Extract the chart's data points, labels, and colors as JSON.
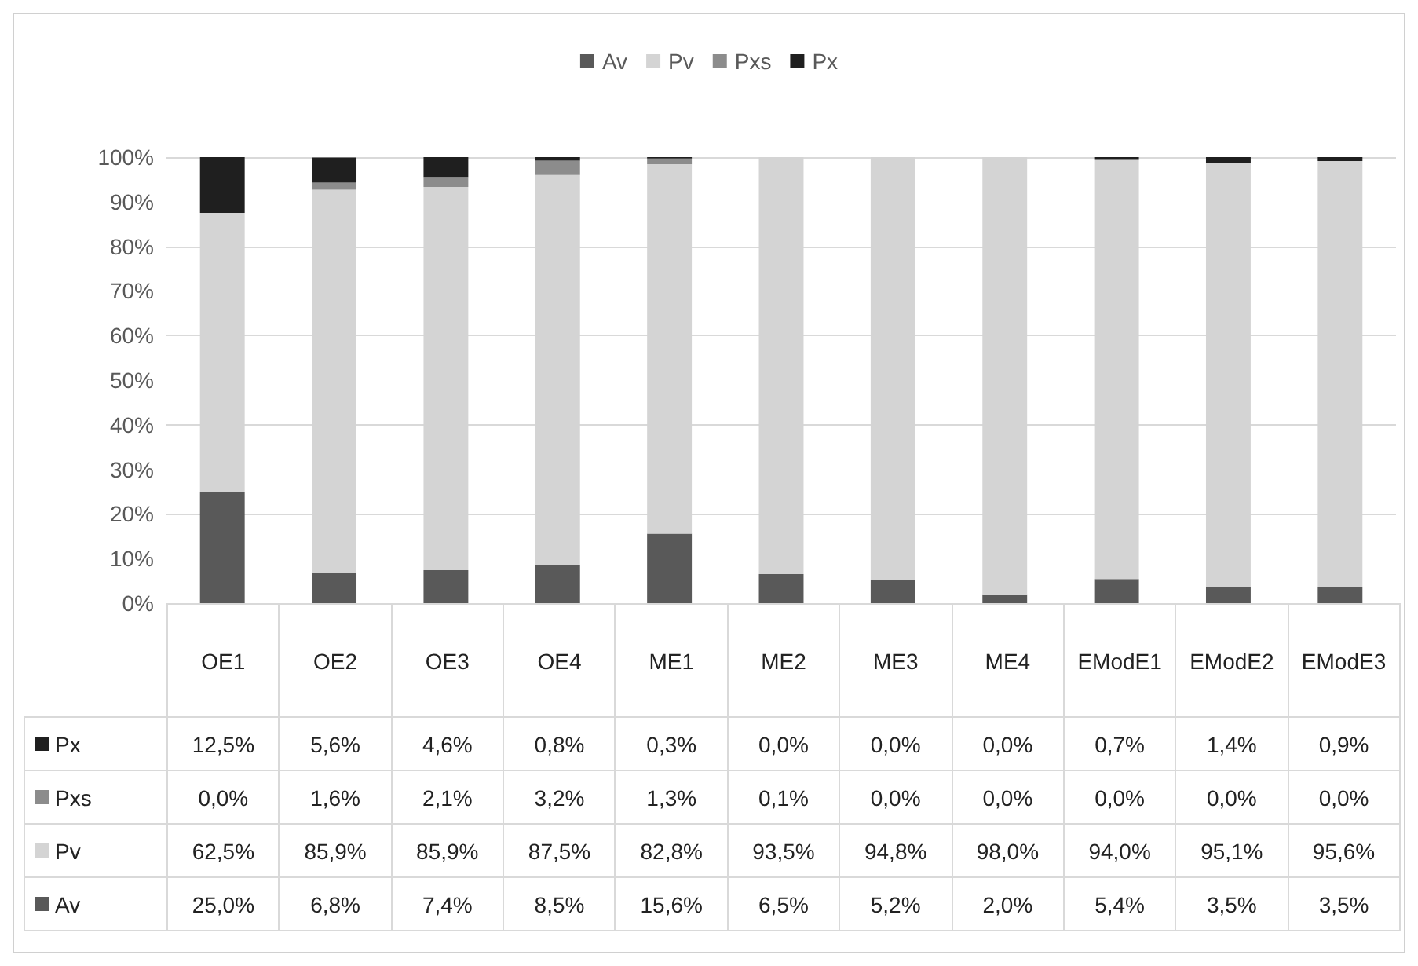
{
  "chart_data": {
    "type": "bar",
    "stacked": true,
    "categories": [
      "OE1",
      "OE2",
      "OE3",
      "OE4",
      "ME1",
      "ME2",
      "ME3",
      "ME4",
      "EModE1",
      "EModE2",
      "EModE3"
    ],
    "series": [
      {
        "name": "Av",
        "color": "#595959",
        "values": [
          25.0,
          6.8,
          7.4,
          8.5,
          15.6,
          6.5,
          5.2,
          2.0,
          5.4,
          3.5,
          3.5
        ],
        "value_labels": [
          "25,0%",
          "6,8%",
          "7,4%",
          "8,5%",
          "15,6%",
          "6,5%",
          "5,2%",
          "2,0%",
          "5,4%",
          "3,5%",
          "3,5%"
        ]
      },
      {
        "name": "Pv",
        "color": "#d4d4d4",
        "values": [
          62.5,
          85.9,
          85.9,
          87.5,
          82.8,
          93.5,
          94.8,
          98.0,
          94.0,
          95.1,
          95.6
        ],
        "value_labels": [
          "62,5%",
          "85,9%",
          "85,9%",
          "87,5%",
          "82,8%",
          "93,5%",
          "94,8%",
          "98,0%",
          "94,0%",
          "95,1%",
          "95,6%"
        ]
      },
      {
        "name": "Pxs",
        "color": "#8c8c8c",
        "values": [
          0.0,
          1.6,
          2.1,
          3.2,
          1.3,
          0.1,
          0.0,
          0.0,
          0.0,
          0.0,
          0.0
        ],
        "value_labels": [
          "0,0%",
          "1,6%",
          "2,1%",
          "3,2%",
          "1,3%",
          "0,1%",
          "0,0%",
          "0,0%",
          "0,0%",
          "0,0%",
          "0,0%"
        ]
      },
      {
        "name": "Px",
        "color": "#1f1f1f",
        "values": [
          12.5,
          5.6,
          4.6,
          0.8,
          0.3,
          0.0,
          0.0,
          0.0,
          0.7,
          1.4,
          0.9
        ],
        "value_labels": [
          "12,5%",
          "5,6%",
          "4,6%",
          "0,8%",
          "0,3%",
          "0,0%",
          "0,0%",
          "0,0%",
          "0,7%",
          "1,4%",
          "0,9%"
        ]
      }
    ],
    "ylim": [
      0,
      100
    ],
    "yticks": [
      {
        "value": 0,
        "label": "0%"
      },
      {
        "value": 10,
        "label": "10%"
      },
      {
        "value": 20,
        "label": "20%"
      },
      {
        "value": 30,
        "label": "30%"
      },
      {
        "value": 40,
        "label": "40%"
      },
      {
        "value": 50,
        "label": "50%"
      },
      {
        "value": 60,
        "label": "60%"
      },
      {
        "value": 70,
        "label": "70%"
      },
      {
        "value": 80,
        "label": "80%"
      },
      {
        "value": 90,
        "label": "90%"
      },
      {
        "value": 100,
        "label": "100%"
      }
    ],
    "grid": "y",
    "legend": "top",
    "tick_labels": "y"
  }
}
